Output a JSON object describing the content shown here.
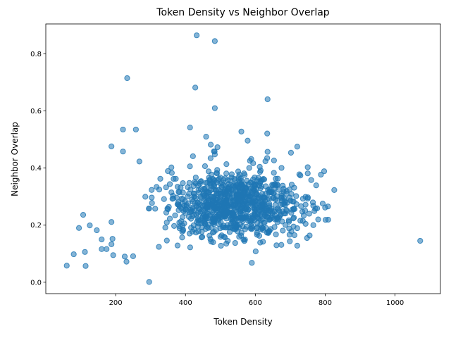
{
  "chart_data": {
    "type": "scatter",
    "title": "Token Density vs Neighbor Overlap",
    "xlabel": "Token Density",
    "ylabel": "Neighbor Overlap",
    "xlim": [
      0,
      1130
    ],
    "ylim": [
      -0.04,
      0.905
    ],
    "xticks": [
      200,
      400,
      600,
      800,
      1000
    ],
    "yticks": [
      0.0,
      0.2,
      0.4,
      0.6,
      0.8
    ],
    "xtick_labels": [
      "200",
      "400",
      "600",
      "800",
      "1000"
    ],
    "ytick_labels": [
      "0.0",
      "0.2",
      "0.4",
      "0.6",
      "0.8"
    ],
    "grid": false,
    "color": "#1f77b4",
    "point_alpha": 0.55,
    "outliers": [
      {
        "x": 432,
        "y": 0.865
      },
      {
        "x": 484,
        "y": 0.845
      },
      {
        "x": 233,
        "y": 0.715
      },
      {
        "x": 428,
        "y": 0.682
      },
      {
        "x": 635,
        "y": 0.641
      },
      {
        "x": 484,
        "y": 0.61
      },
      {
        "x": 221,
        "y": 0.535
      },
      {
        "x": 258,
        "y": 0.535
      },
      {
        "x": 413,
        "y": 0.542
      },
      {
        "x": 560,
        "y": 0.528
      },
      {
        "x": 459,
        "y": 0.51
      },
      {
        "x": 634,
        "y": 0.521
      },
      {
        "x": 188,
        "y": 0.476
      },
      {
        "x": 720,
        "y": 0.475
      },
      {
        "x": 221,
        "y": 0.458
      },
      {
        "x": 268,
        "y": 0.423
      },
      {
        "x": 635,
        "y": 0.457
      },
      {
        "x": 578,
        "y": 0.496
      },
      {
        "x": 1072,
        "y": 0.145
      },
      {
        "x": 826,
        "y": 0.323
      },
      {
        "x": 60,
        "y": 0.058
      },
      {
        "x": 114,
        "y": 0.057
      },
      {
        "x": 80,
        "y": 0.098
      },
      {
        "x": 95,
        "y": 0.19
      },
      {
        "x": 107,
        "y": 0.236
      },
      {
        "x": 112,
        "y": 0.106
      },
      {
        "x": 126,
        "y": 0.199
      },
      {
        "x": 146,
        "y": 0.182
      },
      {
        "x": 160,
        "y": 0.15
      },
      {
        "x": 160,
        "y": 0.116
      },
      {
        "x": 174,
        "y": 0.116
      },
      {
        "x": 188,
        "y": 0.211
      },
      {
        "x": 191,
        "y": 0.152
      },
      {
        "x": 193,
        "y": 0.095
      },
      {
        "x": 188,
        "y": 0.133
      },
      {
        "x": 296,
        "y": 0.001
      },
      {
        "x": 231,
        "y": 0.072
      },
      {
        "x": 226,
        "y": 0.09
      },
      {
        "x": 250,
        "y": 0.091
      },
      {
        "x": 590,
        "y": 0.068
      },
      {
        "x": 601,
        "y": 0.108
      },
      {
        "x": 766,
        "y": 0.2
      },
      {
        "x": 780,
        "y": 0.22
      },
      {
        "x": 777,
        "y": 0.259
      },
      {
        "x": 760,
        "y": 0.358
      },
      {
        "x": 750,
        "y": 0.403
      },
      {
        "x": 750,
        "y": 0.293
      },
      {
        "x": 748,
        "y": 0.155
      },
      {
        "x": 720,
        "y": 0.128
      },
      {
        "x": 712,
        "y": 0.165
      },
      {
        "x": 729,
        "y": 0.374
      }
    ],
    "cluster": {
      "center_x": 545,
      "center_y": 0.27,
      "spread_x": 95,
      "spread_y": 0.062,
      "count": 900
    }
  }
}
